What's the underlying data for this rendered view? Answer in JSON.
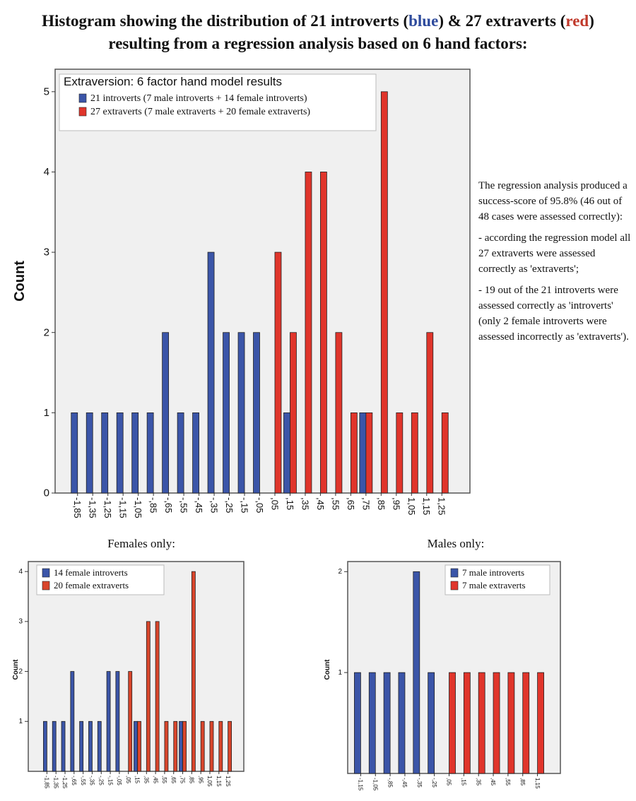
{
  "header": {
    "title_lines": [
      [
        "Histogram showing the distribution of 21 introverts (",
        "blue",
        ") & 27 extraverts (",
        "red",
        ")"
      ],
      [
        "resulting from a regression analysis based on 6 hand factors:"
      ]
    ]
  },
  "notes": [
    "The regression analysis produced a success-score of 95.8% (46 out of 48 cases were assessed correctly):",
    "- according the regression model all 27 extraverts were assessed correctly as 'extraverts';",
    "- 19 out of the 21 introverts were assessed correctly as 'introverts' (only 2 female introverts were assessed incorrectly as 'extraverts')."
  ],
  "chart_data": [
    {
      "type": "bar",
      "legend_title": "Extraversion: 6 factor hand model results",
      "ylabel": "Count",
      "categories": [
        "-1,85",
        "-1,35",
        "-1,25",
        "-1,15",
        "-1,05",
        "-,85",
        "-,65",
        "-,55",
        "-,45",
        "-,35",
        "-,25",
        "-,15",
        "-,05",
        ",05",
        ",15",
        ",35",
        ",45",
        ",55",
        ",65",
        ",75",
        ",85",
        ",95",
        "1,05",
        "1,15",
        "1,25"
      ],
      "series": [
        {
          "name": "21 introverts (7 male introverts + 14 female introverts)",
          "color": "#3b55a8",
          "values": [
            1,
            1,
            1,
            1,
            1,
            1,
            2,
            1,
            1,
            3,
            2,
            2,
            2,
            0,
            1,
            0,
            0,
            0,
            0,
            1,
            0,
            0,
            0,
            0,
            0
          ]
        },
        {
          "name": "27 extraverts (7 male extraverts + 20 female extraverts)",
          "color": "#e0352b",
          "values": [
            0,
            0,
            0,
            0,
            0,
            0,
            0,
            0,
            0,
            0,
            0,
            0,
            0,
            3,
            2,
            4,
            4,
            2,
            1,
            1,
            5,
            1,
            1,
            2,
            1
          ]
        }
      ],
      "ylim": [
        0,
        5.28
      ],
      "yticks": [
        0,
        1,
        2,
        3,
        4,
        5
      ]
    },
    {
      "type": "bar",
      "title": "Females only:",
      "ylabel": "Count",
      "categories": [
        "-1,85",
        "-1,35",
        "-1,25",
        "-,65",
        "-,55",
        "-,35",
        "-,25",
        "-,15",
        "-,05",
        ",05",
        ",15",
        ",35",
        ",45",
        ",55",
        ",65",
        ",75",
        ",85",
        ",95",
        "1,05",
        "1,15",
        "1,25"
      ],
      "series": [
        {
          "name": "14 female introverts",
          "color": "#3b55a8",
          "values": [
            1,
            1,
            1,
            2,
            1,
            1,
            1,
            2,
            2,
            0,
            1,
            0,
            0,
            0,
            0,
            1,
            0,
            0,
            0,
            0,
            0
          ]
        },
        {
          "name": "20 female extraverts",
          "color": "#d9452b",
          "values": [
            0,
            0,
            0,
            0,
            0,
            0,
            0,
            0,
            0,
            2,
            1,
            3,
            3,
            1,
            1,
            1,
            4,
            1,
            1,
            1,
            1
          ]
        }
      ],
      "ylim": [
        0,
        4.2
      ],
      "yticks": [
        1,
        2,
        3,
        4
      ]
    },
    {
      "type": "bar",
      "title": "Males only:",
      "ylabel": "Count",
      "categories": [
        "-1,15",
        "-1,05",
        "-,85",
        "-,45",
        "-,35",
        "-,25",
        ",05",
        ",15",
        ",35",
        ",45",
        ",55",
        ",85",
        "1,15"
      ],
      "series": [
        {
          "name": "7 male introverts",
          "color": "#3b55a8",
          "values": [
            1,
            1,
            1,
            1,
            2,
            1,
            0,
            0,
            0,
            0,
            0,
            0,
            0
          ]
        },
        {
          "name": "7 male extraverts",
          "color": "#e0352b",
          "values": [
            0,
            0,
            0,
            0,
            0,
            0,
            1,
            1,
            1,
            1,
            1,
            1,
            1
          ]
        }
      ],
      "ylim": [
        0,
        2.1
      ],
      "yticks": [
        1,
        2
      ]
    }
  ]
}
